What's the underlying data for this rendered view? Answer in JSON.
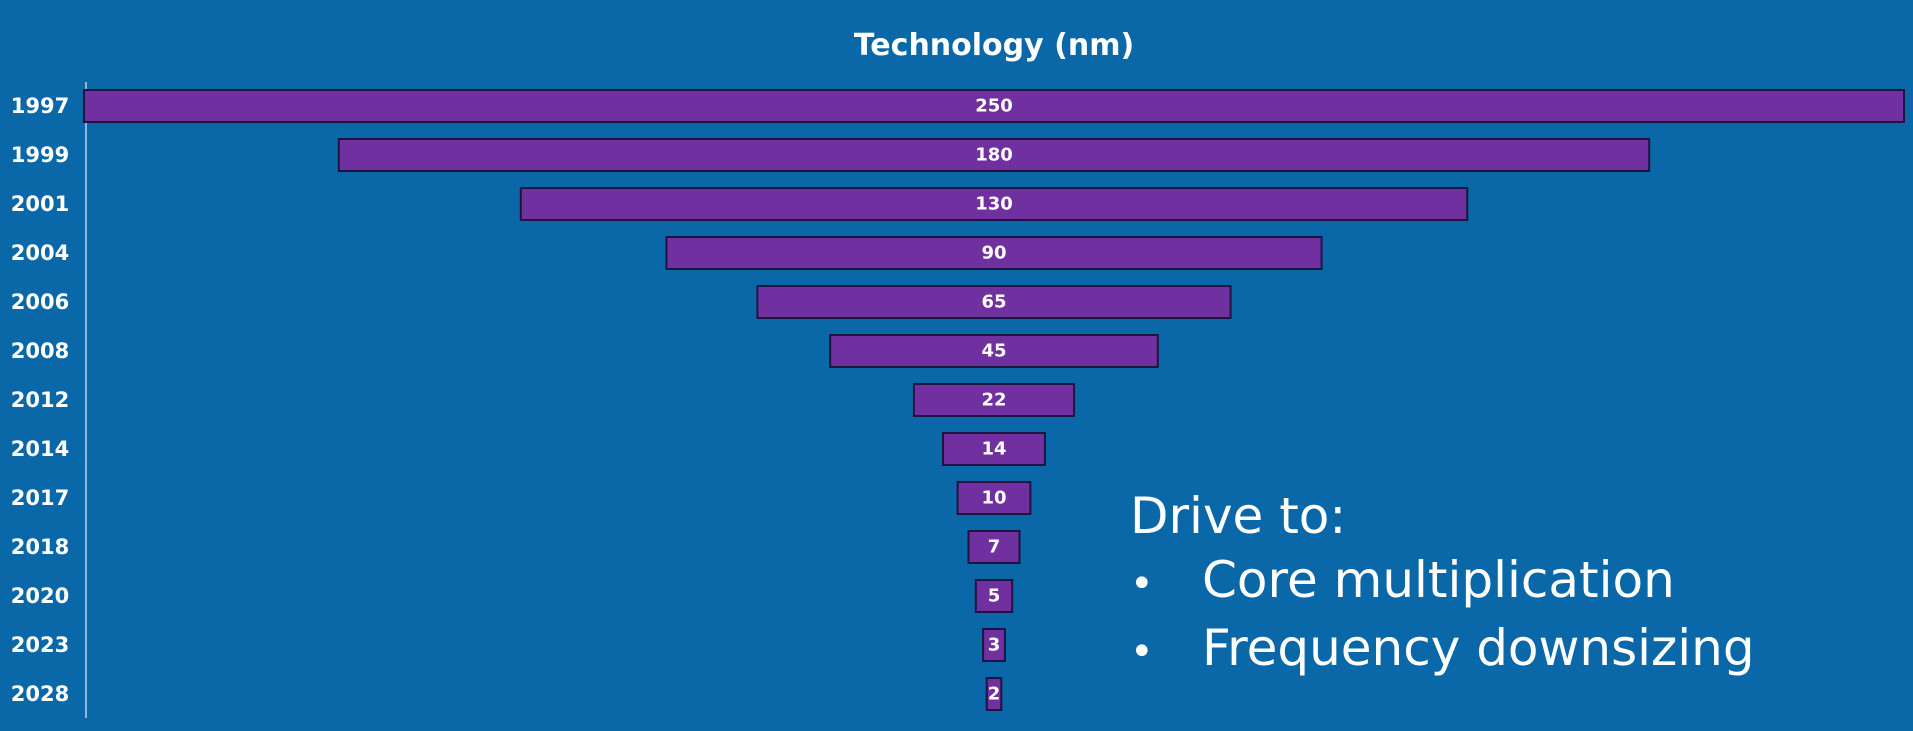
{
  "chart_data": {
    "type": "bar",
    "orientation": "horizontal",
    "layout": "funnel",
    "title": "Technology (nm)",
    "categories": [
      "1997",
      "1999",
      "2001",
      "2004",
      "2006",
      "2008",
      "2012",
      "2014",
      "2017",
      "2018",
      "2020",
      "2023",
      "2028"
    ],
    "values": [
      250,
      180,
      130,
      90,
      65,
      45,
      22,
      14,
      10,
      7,
      5,
      3,
      2
    ],
    "data_labels": [
      "250",
      "180",
      "130",
      "90",
      "65",
      "45",
      "22",
      "14",
      "10",
      "7",
      "5",
      "3",
      "2"
    ],
    "xlabel": "",
    "ylabel": "",
    "xlim": [
      0,
      250
    ],
    "grid": false,
    "legend": "none",
    "colors": {
      "background": "#0A68A8",
      "bar_fill": "#7030A0",
      "bar_stroke": "#1E1440",
      "text": "#FFFFFF",
      "axis": "#BFD3E6"
    }
  },
  "annotation": {
    "heading": "Drive to:",
    "bullet_glyph": "•",
    "items": [
      "Core multiplication",
      "Frequency downsizing"
    ]
  }
}
